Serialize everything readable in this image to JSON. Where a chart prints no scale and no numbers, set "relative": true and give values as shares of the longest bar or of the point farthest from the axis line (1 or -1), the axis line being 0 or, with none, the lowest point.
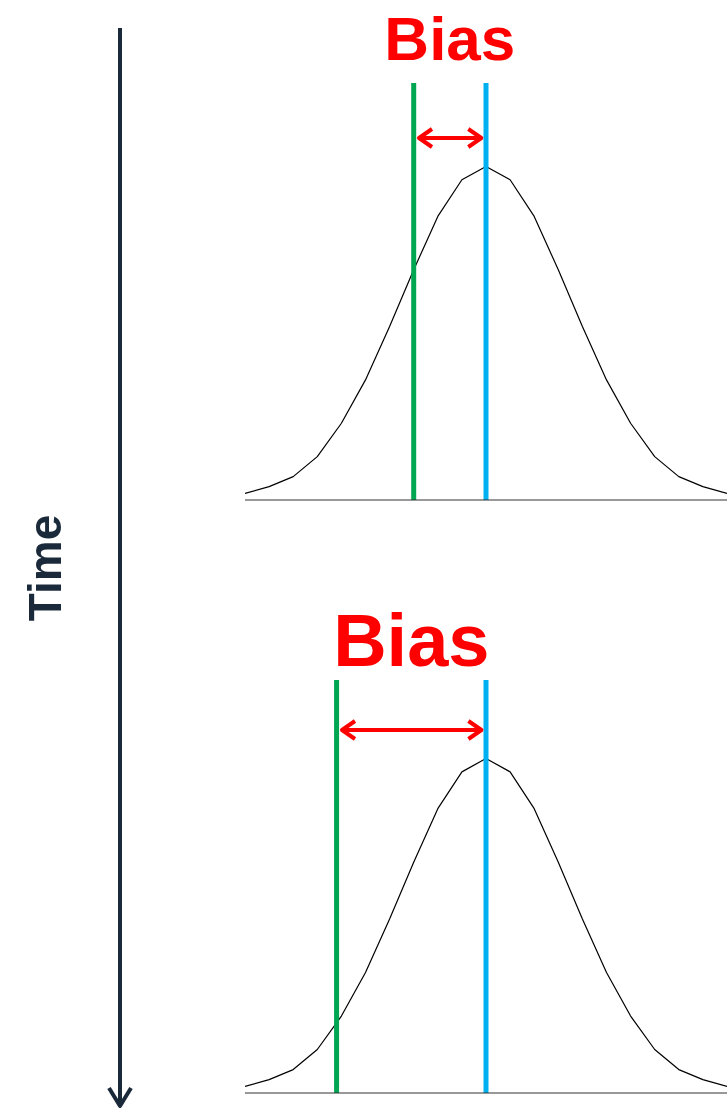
{
  "chart_data": [
    {
      "type": "line",
      "relative": true,
      "categories": [
        null,
        null,
        null,
        null,
        null,
        null,
        null,
        null,
        null,
        null,
        null,
        null,
        null,
        null,
        null,
        null,
        null,
        null,
        null,
        null,
        null
      ],
      "color": "#000000",
      "values": [
        0.02,
        0.04,
        0.07,
        0.13,
        0.23,
        0.36,
        0.52,
        0.69,
        0.85,
        0.96,
        1,
        0.96,
        0.85,
        0.69,
        0.52,
        0.36,
        0.23,
        0.13,
        0.07,
        0.04,
        0.02
      ],
      "annotations": [
        "Bias",
        "Time"
      ]
    },
    {
      "type": "line",
      "relative": true,
      "categories": [
        null,
        null,
        null,
        null,
        null,
        null,
        null,
        null,
        null,
        null,
        null,
        null,
        null,
        null,
        null,
        null,
        null,
        null,
        null,
        null,
        null
      ],
      "color": "#000000",
      "values": [
        0.02,
        0.04,
        0.07,
        0.13,
        0.23,
        0.36,
        0.52,
        0.69,
        0.85,
        0.96,
        1,
        0.96,
        0.85,
        0.69,
        0.52,
        0.36,
        0.23,
        0.13,
        0.07,
        0.04,
        0.02
      ],
      "annotations": [
        "Bias"
      ]
    }
  ]
}
